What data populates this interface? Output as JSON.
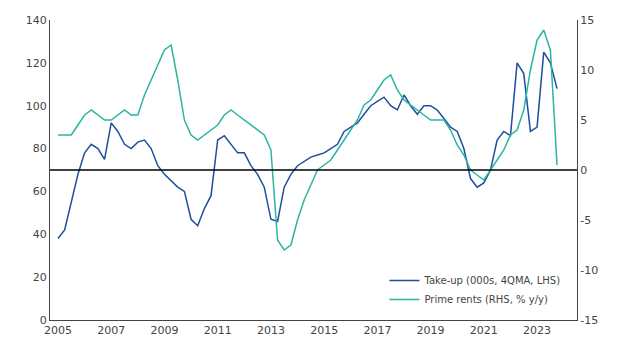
{
  "chart_data": {
    "type": "line",
    "x": [
      2005.0,
      2005.25,
      2005.5,
      2005.75,
      2006.0,
      2006.25,
      2006.5,
      2006.75,
      2007.0,
      2007.25,
      2007.5,
      2007.75,
      2008.0,
      2008.25,
      2008.5,
      2008.75,
      2009.0,
      2009.25,
      2009.5,
      2009.75,
      2010.0,
      2010.25,
      2010.5,
      2010.75,
      2011.0,
      2011.25,
      2011.5,
      2011.75,
      2012.0,
      2012.25,
      2012.5,
      2012.75,
      2013.0,
      2013.25,
      2013.5,
      2013.75,
      2014.0,
      2014.25,
      2014.5,
      2014.75,
      2015.0,
      2015.25,
      2015.5,
      2015.75,
      2016.0,
      2016.25,
      2016.5,
      2016.75,
      2017.0,
      2017.25,
      2017.5,
      2017.75,
      2018.0,
      2018.25,
      2018.5,
      2018.75,
      2019.0,
      2019.25,
      2019.5,
      2019.75,
      2020.0,
      2020.25,
      2020.5,
      2020.75,
      2021.0,
      2021.25,
      2021.5,
      2021.75,
      2022.0,
      2022.25,
      2022.5,
      2022.75,
      2023.0,
      2023.25,
      2023.5,
      2023.75
    ],
    "series": [
      {
        "name": "Take-up (000s, 4QMA, LHS)",
        "color": "#1f4e9e",
        "values": [
          38,
          42,
          55,
          68,
          78,
          82,
          80,
          75,
          92,
          88,
          82,
          80,
          83,
          84,
          80,
          72,
          68,
          65,
          62,
          60,
          47,
          44,
          52,
          58,
          84,
          86,
          82,
          78,
          78,
          72,
          68,
          62,
          47,
          46,
          62,
          68,
          72,
          74,
          76,
          77,
          78,
          80,
          82,
          88,
          90,
          92,
          96,
          100,
          102,
          104,
          100,
          98,
          105,
          100,
          96,
          100,
          100,
          98,
          94,
          90,
          88,
          80,
          66,
          62,
          64,
          70,
          84,
          88,
          86,
          120,
          115,
          88,
          90,
          125,
          120,
          108
        ]
      },
      {
        "name": "Prime rents (RHS, % y/y)",
        "color": "#2ab5a0",
        "axis": "y2",
        "values": [
          3.5,
          3.5,
          3.5,
          4.5,
          5.5,
          6.0,
          5.5,
          5.0,
          5.0,
          5.5,
          6.0,
          5.5,
          5.5,
          7.5,
          9.0,
          10.5,
          12.0,
          12.5,
          9.0,
          5.0,
          3.5,
          3.0,
          3.5,
          4.0,
          4.5,
          5.5,
          6.0,
          5.5,
          5.0,
          4.5,
          4.0,
          3.5,
          2.0,
          -7.0,
          -8.0,
          -7.5,
          -5.0,
          -3.0,
          -1.5,
          0.0,
          0.5,
          1.0,
          2.0,
          3.0,
          4.0,
          5.0,
          6.5,
          7.0,
          8.0,
          9.0,
          9.5,
          8.0,
          7.0,
          6.5,
          6.0,
          5.5,
          5.0,
          5.0,
          5.0,
          4.0,
          2.5,
          1.5,
          0.0,
          -0.5,
          -1.0,
          0.0,
          1.0,
          2.0,
          3.5,
          4.0,
          6.0,
          10.0,
          13.0,
          14.0,
          12.0,
          0.5
        ]
      }
    ],
    "hline": 70,
    "xlim": [
      2004.7,
      2024.5
    ],
    "xticks": [
      2005,
      2007,
      2009,
      2011,
      2013,
      2015,
      2017,
      2019,
      2021,
      2023
    ],
    "ylim": [
      0,
      140
    ],
    "yticks": [
      0,
      20,
      40,
      60,
      80,
      100,
      120,
      140
    ],
    "y2lim": [
      -15,
      15
    ],
    "y2ticks": [
      -15,
      -10,
      -5,
      0,
      5,
      10,
      15
    ],
    "grid": false,
    "legend": "lower right"
  }
}
